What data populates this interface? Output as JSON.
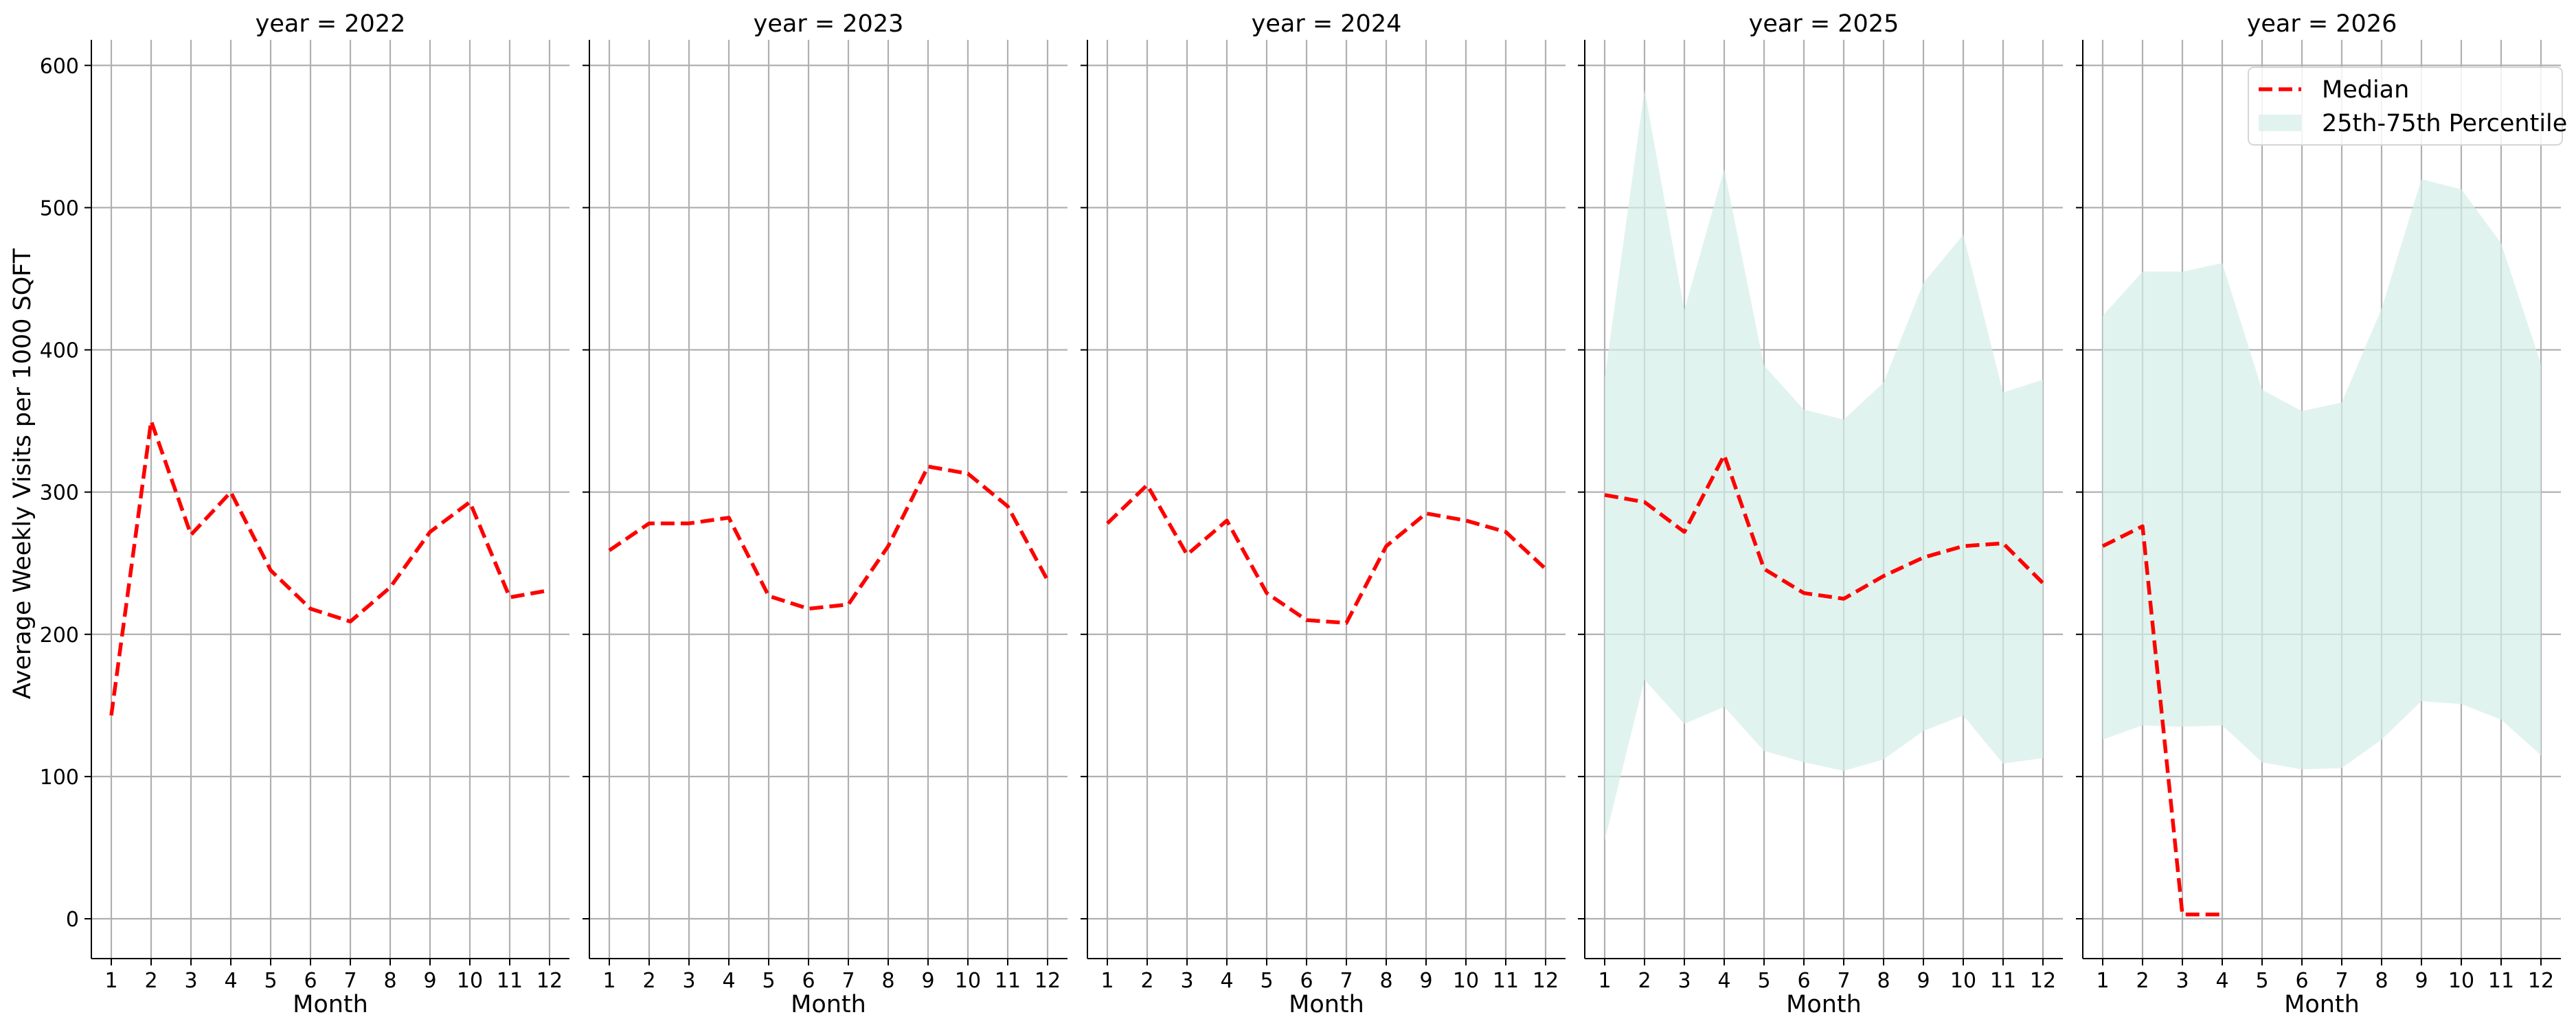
{
  "chart_data": {
    "type": "line",
    "ylabel": "Average Weekly Visits per 1000 SQFT",
    "xlabel": "Month",
    "ylim": [
      -28,
      618
    ],
    "xlim": [
      0.5,
      12.5
    ],
    "yticks": [
      0,
      100,
      200,
      300,
      400,
      500,
      600
    ],
    "xticks": [
      1,
      2,
      3,
      4,
      5,
      6,
      7,
      8,
      9,
      10,
      11,
      12
    ],
    "grid": true,
    "legend": {
      "placement": "top-right of last panel",
      "entries": [
        {
          "label": "Median",
          "kind": "dashed-line",
          "color": "#ff0000"
        },
        {
          "label": "25th-75th Percentile",
          "kind": "band",
          "color": "#d4eee7"
        }
      ]
    },
    "panels": [
      {
        "title": "year = 2022",
        "median": {
          "x": [
            1,
            2,
            3,
            4,
            5,
            6,
            7,
            8,
            9,
            10,
            11,
            12
          ],
          "y": [
            143,
            350,
            270,
            300,
            245,
            218,
            209,
            233,
            272,
            293,
            226,
            231
          ]
        },
        "band": null
      },
      {
        "title": "year = 2023",
        "median": {
          "x": [
            1,
            2,
            3,
            4,
            5,
            6,
            7,
            8,
            9,
            10,
            11,
            12
          ],
          "y": [
            259,
            278,
            278,
            282,
            227,
            218,
            221,
            262,
            318,
            313,
            290,
            238
          ]
        },
        "band": null
      },
      {
        "title": "year = 2024",
        "median": {
          "x": [
            1,
            2,
            3,
            4,
            5,
            6,
            7,
            8,
            9,
            10,
            11,
            12
          ],
          "y": [
            278,
            305,
            256,
            280,
            229,
            210,
            208,
            262,
            285,
            280,
            272,
            246
          ]
        },
        "band": null
      },
      {
        "title": "year = 2025",
        "median": {
          "x": [
            1,
            2,
            3,
            4,
            5,
            6,
            7,
            8,
            9,
            10,
            11,
            12
          ],
          "y": [
            298,
            293,
            272,
            326,
            246,
            229,
            225,
            241,
            254,
            262,
            264,
            236
          ]
        },
        "band": {
          "x": [
            1,
            2,
            3,
            4,
            5,
            6,
            7,
            8,
            9,
            10,
            11,
            12
          ],
          "low": [
            55,
            168,
            137,
            149,
            118,
            110,
            104,
            112,
            132,
            143,
            109,
            113
          ],
          "high": [
            380,
            583,
            428,
            527,
            389,
            358,
            351,
            377,
            447,
            481,
            370,
            379
          ]
        }
      },
      {
        "title": "year = 2026",
        "median": {
          "x": [
            1,
            2,
            3,
            4
          ],
          "y": [
            262,
            276,
            3,
            3
          ]
        },
        "band": {
          "x": [
            1,
            2,
            3,
            4,
            5,
            6,
            7,
            8,
            9,
            10,
            11,
            12
          ],
          "low": [
            126,
            136,
            135,
            136,
            110,
            105,
            106,
            126,
            153,
            151,
            140,
            115
          ],
          "high": [
            424,
            455,
            455,
            461,
            372,
            357,
            363,
            429,
            520,
            513,
            475,
            390
          ]
        }
      }
    ]
  }
}
